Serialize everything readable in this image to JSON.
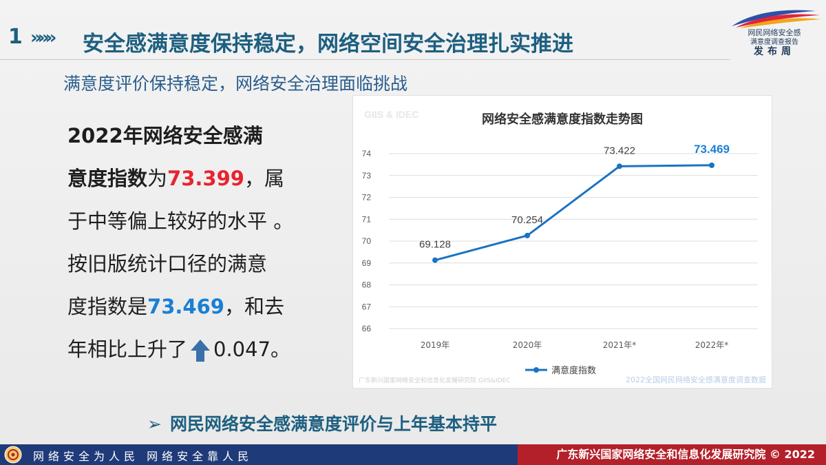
{
  "header": {
    "number": "1",
    "arrows": "»»»",
    "title": "安全感满意度保持稳定，网络空间安全治理扎实推进"
  },
  "brand": {
    "line1": "网民网络安全感",
    "line2": "满意度调查报告",
    "line3": "发布周",
    "colors": [
      "#2f4fa8",
      "#e0253a",
      "#f2a51a"
    ]
  },
  "subtitle": "满意度评价保持稳定，网络安全治理面临挑战",
  "body": {
    "line1": "2022年网络安全感满",
    "line2_bold": "意度指数",
    "line2_mid": "为",
    "line2_value": "73.399",
    "line2_tail": "，属",
    "line3": "于中等偏上较好的水平 。",
    "line4": "按旧版统计口径的满意",
    "line5_head": "度指数是",
    "line5_value": "73.469",
    "line5_tail": "，和去",
    "line6_head": "年相比上升了",
    "line6_icon": "up-arrow-icon",
    "line6_value": "0.047。"
  },
  "chart_data": {
    "type": "line",
    "title": "网络安全感满意度指数走势图",
    "watermark_top": "GIIS & IDEC",
    "source_left": "广东新兴国家网络安全和信息化发展研究院 GIIS&IDEC",
    "source_right": "2022全国网民网络安全感满意度调查数据",
    "categories": [
      "2019年",
      "2020年",
      "2021年*",
      "2022年*"
    ],
    "series": [
      {
        "name": "满意度指数",
        "values": [
          69.128,
          70.254,
          73.422,
          73.469
        ],
        "labels": [
          "69.128",
          "70.254",
          "73.422",
          "73.469"
        ],
        "color": "#1a73c2"
      }
    ],
    "highlight_label_color": "#1a7fd4",
    "ylim": [
      66,
      74
    ],
    "yticks": [
      "66",
      "67",
      "68",
      "69",
      "70",
      "71",
      "72",
      "73",
      "74"
    ],
    "grid": true,
    "legend": "bottom"
  },
  "bullet": {
    "mark": "➢",
    "text": "网民网络安全感满意度评价与上年基本持平"
  },
  "footer": {
    "left": "网络安全为人民    网络安全靠人民",
    "right": "广东新兴国家网络安全和信息化发展研究院 © 2022",
    "left_bg": "#1f3a78",
    "right_bg": "#b3202a"
  }
}
